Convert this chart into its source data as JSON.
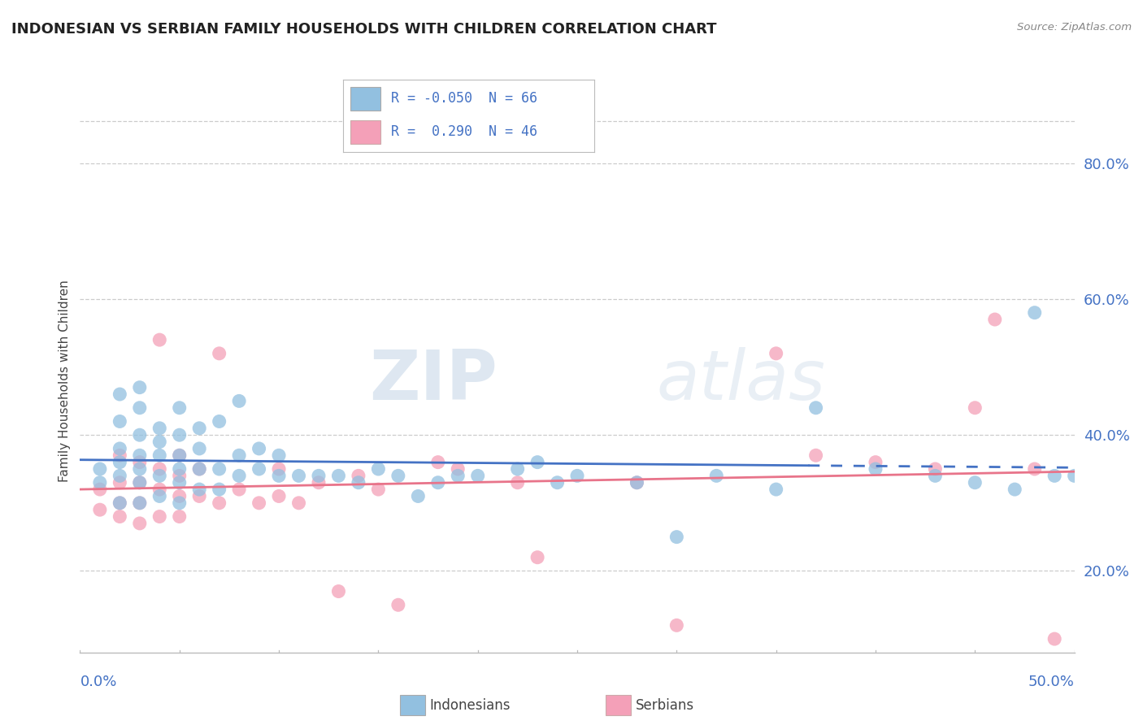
{
  "title": "INDONESIAN VS SERBIAN FAMILY HOUSEHOLDS WITH CHILDREN CORRELATION CHART",
  "source": "Source: ZipAtlas.com",
  "ylabel": "Family Households with Children",
  "color_indonesian": "#92c0e0",
  "color_serbian": "#f4a0b8",
  "line_color_indonesian": "#4472c4",
  "line_color_serbian": "#e8748a",
  "watermark_zip": "ZIP",
  "watermark_atlas": "atlas",
  "xlim": [
    0.0,
    0.5
  ],
  "ylim": [
    0.08,
    0.88
  ],
  "ytick_values": [
    0.2,
    0.4,
    0.6,
    0.8
  ],
  "ytick_labels": [
    "20.0%",
    "40.0%",
    "60.0%",
    "80.0%"
  ],
  "xtick_labels": [
    "0.0%",
    "50.0%"
  ],
  "legend_r1": "R = -0.050",
  "legend_n1": "N = 66",
  "legend_r2": "R =  0.290",
  "legend_n2": "N = 46",
  "bottom_legend_indonesians": "Indonesians",
  "bottom_legend_serbians": "Serbians",
  "indonesian_x": [
    0.01,
    0.01,
    0.02,
    0.02,
    0.02,
    0.02,
    0.02,
    0.02,
    0.03,
    0.03,
    0.03,
    0.03,
    0.03,
    0.03,
    0.03,
    0.04,
    0.04,
    0.04,
    0.04,
    0.04,
    0.05,
    0.05,
    0.05,
    0.05,
    0.05,
    0.05,
    0.06,
    0.06,
    0.06,
    0.06,
    0.07,
    0.07,
    0.07,
    0.08,
    0.08,
    0.08,
    0.09,
    0.09,
    0.1,
    0.1,
    0.11,
    0.12,
    0.13,
    0.14,
    0.15,
    0.16,
    0.17,
    0.18,
    0.19,
    0.2,
    0.22,
    0.23,
    0.24,
    0.25,
    0.28,
    0.3,
    0.32,
    0.35,
    0.37,
    0.4,
    0.43,
    0.45,
    0.47,
    0.48,
    0.49,
    0.5
  ],
  "indonesian_y": [
    0.33,
    0.35,
    0.3,
    0.34,
    0.36,
    0.38,
    0.42,
    0.46,
    0.3,
    0.33,
    0.35,
    0.37,
    0.4,
    0.44,
    0.47,
    0.31,
    0.34,
    0.37,
    0.39,
    0.41,
    0.3,
    0.33,
    0.35,
    0.37,
    0.4,
    0.44,
    0.32,
    0.35,
    0.38,
    0.41,
    0.32,
    0.35,
    0.42,
    0.34,
    0.37,
    0.45,
    0.35,
    0.38,
    0.34,
    0.37,
    0.34,
    0.34,
    0.34,
    0.33,
    0.35,
    0.34,
    0.31,
    0.33,
    0.34,
    0.34,
    0.35,
    0.36,
    0.33,
    0.34,
    0.33,
    0.25,
    0.34,
    0.32,
    0.44,
    0.35,
    0.34,
    0.33,
    0.32,
    0.58,
    0.34,
    0.34
  ],
  "serbian_x": [
    0.01,
    0.01,
    0.02,
    0.02,
    0.02,
    0.02,
    0.03,
    0.03,
    0.03,
    0.03,
    0.04,
    0.04,
    0.04,
    0.04,
    0.05,
    0.05,
    0.05,
    0.05,
    0.06,
    0.06,
    0.07,
    0.07,
    0.08,
    0.09,
    0.1,
    0.1,
    0.11,
    0.12,
    0.13,
    0.14,
    0.15,
    0.16,
    0.18,
    0.19,
    0.22,
    0.23,
    0.28,
    0.3,
    0.35,
    0.37,
    0.4,
    0.43,
    0.45,
    0.46,
    0.48,
    0.49
  ],
  "serbian_y": [
    0.29,
    0.32,
    0.28,
    0.3,
    0.33,
    0.37,
    0.27,
    0.3,
    0.33,
    0.36,
    0.28,
    0.32,
    0.35,
    0.54,
    0.28,
    0.31,
    0.34,
    0.37,
    0.31,
    0.35,
    0.3,
    0.52,
    0.32,
    0.3,
    0.31,
    0.35,
    0.3,
    0.33,
    0.17,
    0.34,
    0.32,
    0.15,
    0.36,
    0.35,
    0.33,
    0.22,
    0.33,
    0.12,
    0.52,
    0.37,
    0.36,
    0.35,
    0.44,
    0.57,
    0.35,
    0.1
  ]
}
